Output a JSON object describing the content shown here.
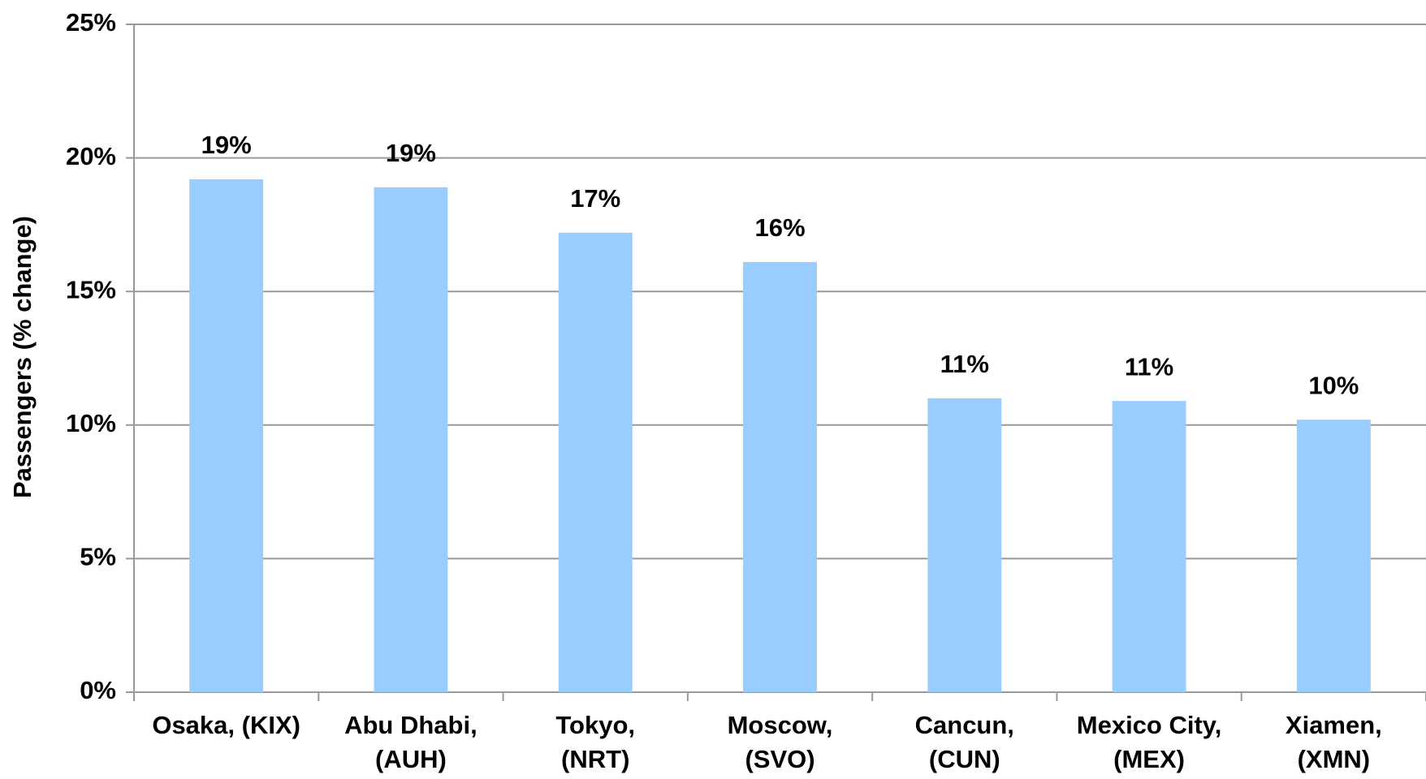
{
  "chart_data": {
    "type": "bar",
    "y_label": "Passengers (% change)",
    "categories": [
      [
        "Osaka, (KIX)"
      ],
      [
        "Abu Dhabi,",
        "(AUH)"
      ],
      [
        "Tokyo,",
        "(NRT)"
      ],
      [
        "Moscow,",
        "(SVO)"
      ],
      [
        "Cancun,",
        "(CUN)"
      ],
      [
        "Mexico City,",
        "(MEX)"
      ],
      [
        "Xiamen,",
        "(XMN)"
      ]
    ],
    "values": [
      19.2,
      18.9,
      17.2,
      16.1,
      11.0,
      10.9,
      10.2
    ],
    "value_labels": [
      "19%",
      "19%",
      "17%",
      "16%",
      "11%",
      "11%",
      "10%"
    ],
    "color": "#99ccff",
    "ylim": [
      0,
      25
    ],
    "yticks": [
      {
        "value": 0,
        "label": "0%"
      },
      {
        "value": 5,
        "label": "5%"
      },
      {
        "value": 10,
        "label": "10%"
      },
      {
        "value": 15,
        "label": "15%"
      },
      {
        "value": 20,
        "label": "20%"
      },
      {
        "value": 25,
        "label": "25%"
      }
    ],
    "grid": true
  }
}
